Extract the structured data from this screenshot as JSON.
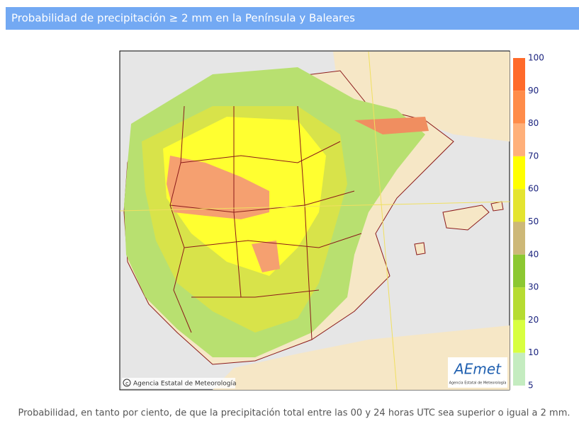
{
  "header": {
    "title": "Probabilidad de precipitación ≥ 2 mm en la Península y Baleares"
  },
  "map": {
    "copyright": "Agencia Estatal de Meteorología",
    "logo": {
      "name": "AEmet",
      "subtitle": "Agencia Estatal de Meteorología"
    }
  },
  "legend": {
    "ticks": [
      "100",
      "90",
      "80",
      "70",
      "60",
      "50",
      "40",
      "30",
      "20",
      "10",
      "5"
    ],
    "colors": [
      "#ff6a2a",
      "#ff8c4a",
      "#ffb07a",
      "#ffff00",
      "#e4e430",
      "#cdb878",
      "#8cc832",
      "#b6dc32",
      "#d8ff40",
      "#c4ecc0"
    ]
  },
  "caption": "Probabilidad, en tanto por ciento, de que la precipitación total entre las 00 y 24 horas UTC sea superior o igual a 2 mm."
}
